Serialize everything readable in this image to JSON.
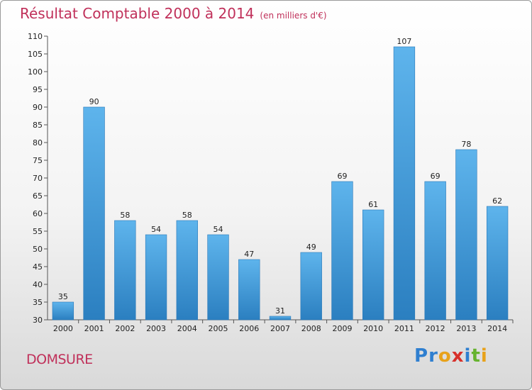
{
  "chart_data": {
    "type": "bar",
    "title": "Résultat Comptable 2000 à 2014",
    "subtitle": "(en milliers d'€)",
    "categories": [
      "2000",
      "2001",
      "2002",
      "2003",
      "2004",
      "2005",
      "2006",
      "2007",
      "2008",
      "2009",
      "2010",
      "2011",
      "2012",
      "2013",
      "2014"
    ],
    "values": [
      35,
      90,
      58,
      54,
      58,
      54,
      47,
      31,
      49,
      69,
      61,
      107,
      69,
      78,
      62
    ],
    "ylim": [
      30,
      110
    ],
    "yticks": [
      30,
      35,
      40,
      45,
      50,
      55,
      60,
      65,
      70,
      75,
      80,
      85,
      90,
      95,
      100,
      105,
      110
    ],
    "grid": false,
    "xlabel": "",
    "ylabel": "",
    "bar_color": "#4aa3e0"
  },
  "town_name": "DOMSURE",
  "logo": {
    "text": "Proxiti",
    "letters": [
      {
        "ch": "P",
        "color": "#2f7fd0"
      },
      {
        "ch": "r",
        "color": "#2f7fd0"
      },
      {
        "ch": "o",
        "color": "#e8a21b"
      },
      {
        "ch": "x",
        "color": "#d7302a"
      },
      {
        "ch": "i",
        "color": "#2f7fd0"
      },
      {
        "ch": "t",
        "color": "#66b32e"
      },
      {
        "ch": "i",
        "color": "#e8a21b"
      }
    ]
  }
}
